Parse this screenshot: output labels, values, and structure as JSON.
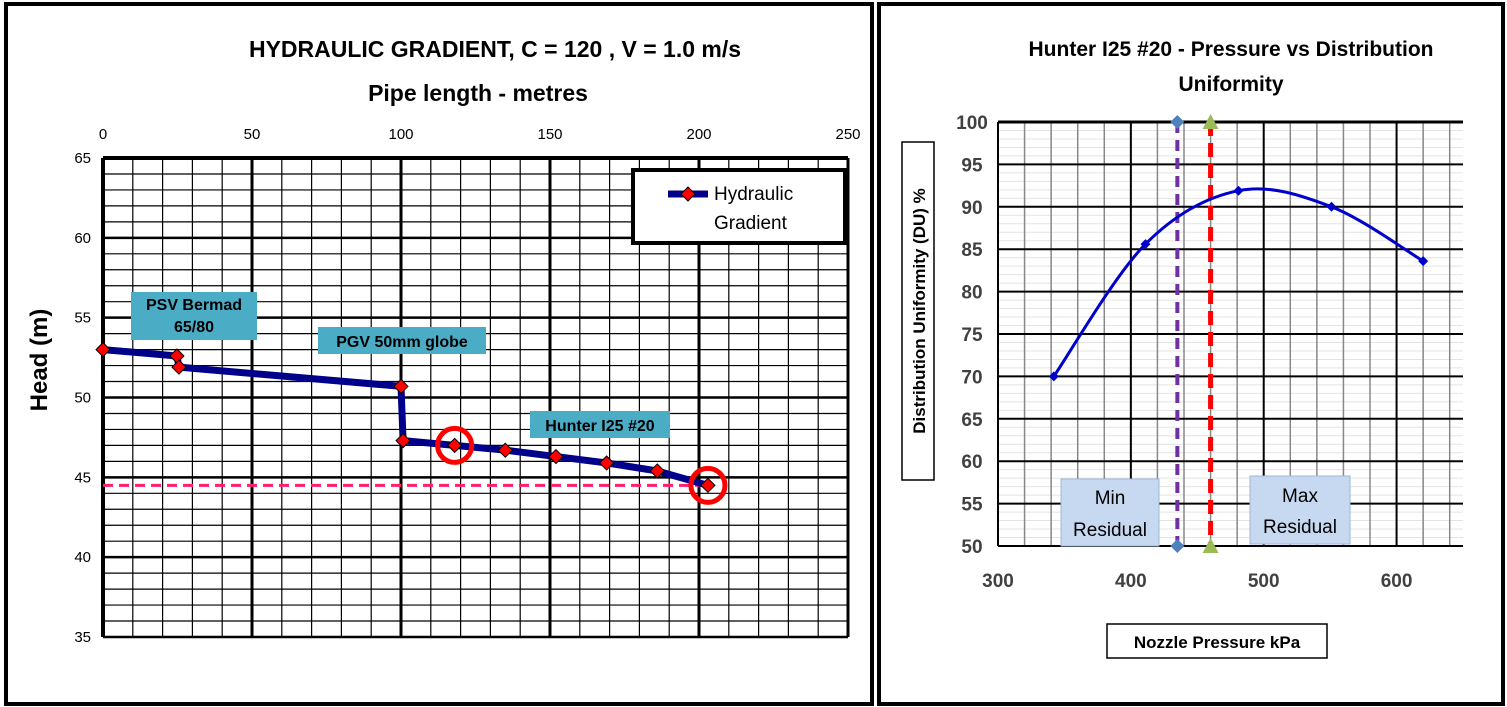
{
  "chart_data": [
    {
      "type": "line",
      "title": "HYDRAULIC GRADIENT,  C = 120 ,  V = 1.0 m/s",
      "subtitle": "Pipe length - metres",
      "xlabel": "",
      "ylabel": "Head (m)",
      "xlim": [
        0,
        250
      ],
      "ylim": [
        35,
        65
      ],
      "xticks": [
        0,
        50,
        100,
        150,
        200,
        250
      ],
      "yticks": [
        35,
        40,
        45,
        50,
        55,
        60,
        65
      ],
      "x_axis_position": "top",
      "grid": true,
      "legend_position": "top-right",
      "series": [
        {
          "name": "Hydraulic Gradient",
          "color": "#00008B",
          "marker_color": "#FF0000",
          "x": [
            0,
            24.8,
            25.5,
            100,
            100.7,
            118,
            135,
            152,
            169,
            186,
            203
          ],
          "y": [
            53.0,
            52.6,
            51.9,
            50.7,
            47.3,
            47.0,
            46.7,
            46.3,
            45.9,
            45.4,
            44.5
          ]
        }
      ],
      "reference_line": {
        "y": 44.5,
        "x_from": 0,
        "x_to": 203,
        "color": "#FF1F6E",
        "style": "dashed"
      },
      "highlight_circles": [
        {
          "x": 118,
          "y": 47.0
        },
        {
          "x": 203,
          "y": 44.5
        }
      ],
      "annotations": [
        {
          "text": "PSV Bermad 65/80",
          "lines": [
            "PSV Bermad",
            "65/80"
          ]
        },
        {
          "text": "PGV 50mm globe"
        },
        {
          "text": "Hunter I25 #20"
        }
      ],
      "annotation_color": "#4BACC6"
    },
    {
      "type": "line",
      "title": "Hunter I25 #20 - Pressure vs Distribution Uniformity",
      "title_lines": [
        "Hunter I25 #20 - Pressure vs Distribution",
        "Uniformity"
      ],
      "xlabel": "Nozzle Pressure kPa",
      "ylabel": "Distribution Uniformity (DU) %",
      "xlim": [
        300,
        650
      ],
      "ylim": [
        50,
        100
      ],
      "xticks": [
        300,
        400,
        500,
        600
      ],
      "yticks": [
        50,
        55,
        60,
        65,
        70,
        75,
        80,
        85,
        90,
        95,
        100
      ],
      "grid": true,
      "series": [
        {
          "color": "#0000CC",
          "smooth": true,
          "x": [
            342,
            411,
            481,
            551,
            620
          ],
          "y": [
            70.0,
            85.6,
            91.9,
            90.0,
            83.6
          ]
        }
      ],
      "vertical_lines": [
        {
          "x": 435,
          "color": "#7030A0",
          "marker": "diamond",
          "marker_color": "#4F81BD",
          "style": "dashed"
        },
        {
          "x": 460,
          "color": "#FF0000",
          "marker": "triangle",
          "marker_color": "#9BBB59",
          "style": "dashed"
        }
      ],
      "annotations": [
        {
          "text": "Min Residual",
          "lines": [
            "Min",
            "Residual"
          ]
        },
        {
          "text": "Max Residual",
          "lines": [
            "Max",
            "Residual"
          ]
        }
      ],
      "annotation_color": "#C6D9F1"
    }
  ]
}
